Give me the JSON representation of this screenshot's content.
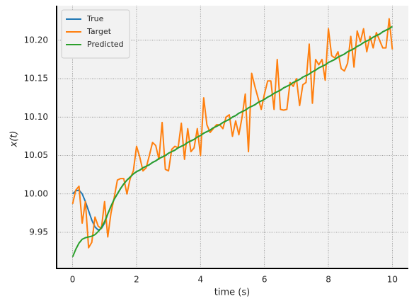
{
  "chart_data": {
    "type": "line",
    "xlabel": "time (s)",
    "ylabel": "x(t)",
    "xlim": [
      -0.5,
      10.5
    ],
    "ylim": [
      9.903,
      10.245
    ],
    "xticks": [
      0,
      2,
      4,
      6,
      8,
      10
    ],
    "yticks": [
      9.95,
      {
        "value": 10.0,
        "label": "10.00"
      },
      10.05,
      {
        "value": 10.1,
        "label": "10.10"
      },
      10.15,
      {
        "value": 10.2,
        "label": "10.20"
      }
    ],
    "grid": true,
    "legend": "upper left",
    "x": [
      0,
      0.1,
      0.2,
      0.3,
      0.4,
      0.5,
      0.6,
      0.7,
      0.8,
      0.9,
      1,
      1.1,
      1.2,
      1.3,
      1.4,
      1.5,
      1.6,
      1.7,
      1.8,
      1.9,
      2,
      2.1,
      2.2,
      2.3,
      2.4,
      2.5,
      2.6,
      2.7,
      2.8,
      2.9,
      3,
      3.1,
      3.2,
      3.3,
      3.4,
      3.5,
      3.6,
      3.7,
      3.8,
      3.9,
      4,
      4.1,
      4.2,
      4.3,
      4.4,
      4.5,
      4.6,
      4.7,
      4.8,
      4.9,
      5,
      5.1,
      5.2,
      5.3,
      5.4,
      5.5,
      5.6,
      5.7,
      5.8,
      5.9,
      6,
      6.1,
      6.2,
      6.3,
      6.4,
      6.5,
      6.6,
      6.7,
      6.8,
      6.9,
      7,
      7.1,
      7.2,
      7.3,
      7.4,
      7.5,
      7.6,
      7.7,
      7.8,
      7.9,
      8,
      8.1,
      8.2,
      8.3,
      8.4,
      8.5,
      8.6,
      8.7,
      8.8,
      8.9,
      9,
      9.1,
      9.2,
      9.3,
      9.4,
      9.5,
      9.6,
      9.7,
      9.8,
      9.9,
      10
    ],
    "series": [
      {
        "name": "True",
        "color": "#1f77b4",
        "values": [
          10.0,
          10.004,
          10.005,
          10.0,
          9.99,
          9.978,
          9.966,
          9.957,
          9.953,
          9.955,
          9.962,
          9.974,
          9.984,
          9.993,
          10.0,
          10.007,
          10.013,
          10.018,
          10.022,
          10.026,
          10.029,
          10.031,
          10.034,
          10.036,
          10.038,
          10.041,
          10.043,
          10.046,
          10.048,
          10.05,
          10.053,
          10.055,
          10.057,
          10.06,
          10.062,
          10.064,
          10.067,
          10.069,
          10.071,
          10.074,
          10.076,
          10.079,
          10.081,
          10.083,
          10.086,
          10.088,
          10.09,
          10.093,
          10.095,
          10.097,
          10.1,
          10.102,
          10.105,
          10.107,
          10.109,
          10.112,
          10.114,
          10.116,
          10.119,
          10.121,
          10.123,
          10.126,
          10.128,
          10.131,
          10.133,
          10.135,
          10.138,
          10.14,
          10.142,
          10.145,
          10.147,
          10.149,
          10.152,
          10.154,
          10.156,
          10.159,
          10.161,
          10.164,
          10.166,
          10.168,
          10.171,
          10.173,
          10.175,
          10.178,
          10.18,
          10.182,
          10.185,
          10.187,
          10.189,
          10.192,
          10.194,
          10.197,
          10.199,
          10.201,
          10.204,
          10.206,
          10.208,
          10.211,
          10.213,
          10.215,
          10.218
        ]
      },
      {
        "name": "Target",
        "color": "#ff7f0e",
        "values": [
          9.987,
          10.005,
          10.01,
          9.962,
          9.99,
          9.93,
          9.937,
          9.97,
          9.958,
          9.955,
          9.99,
          9.944,
          9.975,
          9.995,
          10.018,
          10.02,
          10.02,
          10.0,
          10.02,
          10.03,
          10.062,
          10.048,
          10.03,
          10.034,
          10.05,
          10.067,
          10.063,
          10.045,
          10.093,
          10.032,
          10.03,
          10.058,
          10.062,
          10.06,
          10.092,
          10.045,
          10.085,
          10.055,
          10.06,
          10.085,
          10.05,
          10.125,
          10.09,
          10.08,
          10.085,
          10.09,
          10.09,
          10.085,
          10.1,
          10.103,
          10.075,
          10.095,
          10.077,
          10.1,
          10.13,
          10.055,
          10.157,
          10.14,
          10.125,
          10.11,
          10.13,
          10.147,
          10.147,
          10.11,
          10.175,
          10.11,
          10.109,
          10.11,
          10.145,
          10.14,
          10.15,
          10.115,
          10.142,
          10.145,
          10.195,
          10.118,
          10.175,
          10.168,
          10.175,
          10.148,
          10.215,
          10.18,
          10.177,
          10.185,
          10.163,
          10.16,
          10.17,
          10.205,
          10.165,
          10.212,
          10.198,
          10.215,
          10.185,
          10.205,
          10.19,
          10.21,
          10.2,
          10.19,
          10.19,
          10.228,
          10.188
        ]
      },
      {
        "name": "Predicted",
        "color": "#2ca02c",
        "values": [
          9.918,
          9.928,
          9.936,
          9.941,
          9.943,
          9.944,
          9.945,
          9.947,
          9.951,
          9.956,
          9.964,
          9.974,
          9.984,
          9.993,
          10.0,
          10.007,
          10.013,
          10.018,
          10.022,
          10.026,
          10.029,
          10.031,
          10.034,
          10.036,
          10.038,
          10.041,
          10.043,
          10.046,
          10.048,
          10.05,
          10.053,
          10.055,
          10.057,
          10.06,
          10.062,
          10.064,
          10.067,
          10.069,
          10.071,
          10.074,
          10.076,
          10.079,
          10.081,
          10.083,
          10.086,
          10.088,
          10.09,
          10.093,
          10.095,
          10.097,
          10.1,
          10.102,
          10.105,
          10.107,
          10.109,
          10.112,
          10.114,
          10.116,
          10.119,
          10.121,
          10.123,
          10.126,
          10.128,
          10.131,
          10.133,
          10.135,
          10.138,
          10.14,
          10.142,
          10.145,
          10.147,
          10.149,
          10.152,
          10.154,
          10.156,
          10.159,
          10.161,
          10.164,
          10.166,
          10.168,
          10.171,
          10.173,
          10.175,
          10.178,
          10.18,
          10.182,
          10.185,
          10.187,
          10.189,
          10.192,
          10.194,
          10.197,
          10.199,
          10.201,
          10.204,
          10.206,
          10.208,
          10.211,
          10.213,
          10.215,
          10.218
        ]
      }
    ]
  }
}
